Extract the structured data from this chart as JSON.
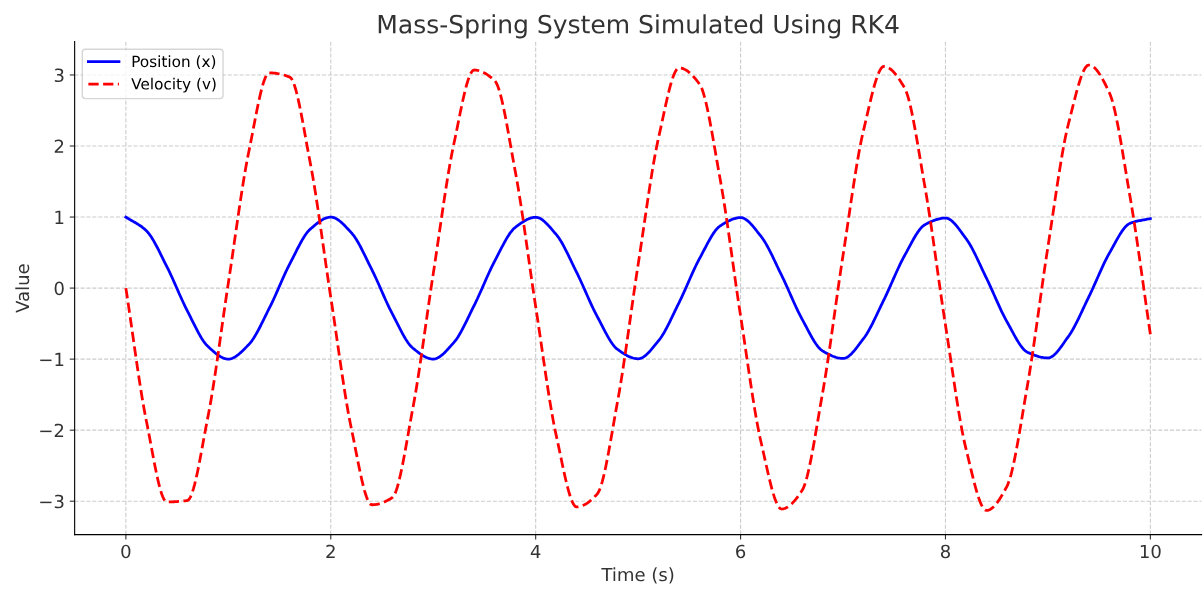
{
  "chart_data": {
    "type": "line",
    "title": "Mass-Spring System Simulated Using RK4",
    "xlabel": "Time (s)",
    "ylabel": "Value",
    "x": [
      0,
      0.2,
      0.4,
      0.6,
      0.8,
      1.0,
      1.2,
      1.4,
      1.6,
      1.8,
      2.0,
      2.2,
      2.4,
      2.6,
      2.8,
      3.0,
      3.2,
      3.4,
      3.6,
      3.8,
      4.0,
      4.2,
      4.4,
      4.6,
      4.8,
      5.0,
      5.2,
      5.4,
      5.6,
      5.8,
      6.0,
      6.2,
      6.4,
      6.6,
      6.8,
      7.0,
      7.2,
      7.4,
      7.6,
      7.8,
      8.0,
      8.2,
      8.4,
      8.6,
      8.8,
      9.0,
      9.2,
      9.4,
      9.6,
      9.8,
      10.0
    ],
    "series": [
      {
        "name": "Position (x)",
        "color": "#0000ff",
        "line_style": "solid",
        "values": [
          1,
          0.807,
          0.302,
          -0.321,
          -0.82,
          -1.0,
          -0.794,
          -0.283,
          0.341,
          0.83,
          0.999,
          0.781,
          0.262,
          -0.36,
          -0.843,
          -0.999,
          -0.768,
          -0.243,
          0.38,
          0.853,
          0.997,
          0.755,
          0.221,
          -0.398,
          -0.864,
          -0.995,
          -0.74,
          -0.203,
          0.417,
          0.874,
          0.992,
          0.727,
          0.181,
          -0.436,
          -0.884,
          -0.99,
          -0.711,
          -0.162,
          0.455,
          0.893,
          0.986,
          0.698,
          0.14,
          -0.473,
          -0.902,
          -0.983,
          -0.681,
          -0.121,
          0.492,
          0.911,
          0.979
        ]
      },
      {
        "name": "Velocity (v)",
        "color": "#ff0000",
        "line_style": "dashed",
        "values": [
          0,
          -1.87,
          -3.01,
          -2.99,
          -1.82,
          0.07,
          1.92,
          3.03,
          2.97,
          1.76,
          -0.13,
          -1.97,
          -3.05,
          -2.95,
          -1.7,
          0.2,
          2.02,
          3.07,
          2.92,
          1.65,
          -0.26,
          -2.07,
          -3.08,
          -2.9,
          -1.59,
          0.33,
          2.12,
          3.1,
          2.87,
          1.54,
          -0.39,
          -2.17,
          -3.11,
          -2.85,
          -1.48,
          0.46,
          2.22,
          3.12,
          2.82,
          1.42,
          -0.52,
          -2.26,
          -3.13,
          -2.79,
          -1.37,
          0.58,
          2.31,
          3.14,
          2.75,
          1.3,
          -0.65
        ]
      }
    ],
    "xlim": [
      -0.5,
      10.5
    ],
    "ylim": [
      -3.47,
      3.47
    ],
    "xticks": [
      0,
      2,
      4,
      6,
      8,
      10
    ],
    "yticks": [
      {
        "value": -3,
        "label": "−3"
      },
      {
        "value": -2,
        "label": "−2"
      },
      {
        "value": -1,
        "label": "−1"
      },
      0,
      1,
      2,
      3
    ],
    "grid": true,
    "legend": "top left",
    "marker": "none"
  }
}
